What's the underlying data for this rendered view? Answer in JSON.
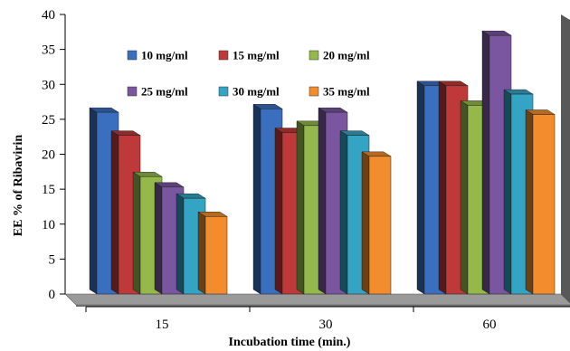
{
  "chart_data": {
    "type": "bar",
    "title": "",
    "xlabel": "Incubation time (min.)",
    "ylabel": "EE % of Ribavirin",
    "ylim": [
      0,
      40
    ],
    "yticks": [
      0,
      5,
      10,
      15,
      20,
      25,
      30,
      35,
      40
    ],
    "categories": [
      "15",
      "30",
      "60"
    ],
    "series": [
      {
        "name": "10 mg/ml",
        "color": "#3a6fc0",
        "values": [
          26,
          26.5,
          29.8
        ]
      },
      {
        "name": "15 mg/ml",
        "color": "#c0393a",
        "values": [
          22.7,
          23.1,
          29.8
        ]
      },
      {
        "name": "20 mg/ml",
        "color": "#94b84a",
        "values": [
          16.8,
          24.1,
          27.0
        ]
      },
      {
        "name": "25 mg/ml",
        "color": "#7a56a0",
        "values": [
          15.3,
          26.0,
          37.0
        ]
      },
      {
        "name": "30 mg/ml",
        "color": "#34a4c4",
        "values": [
          13.7,
          22.7,
          28.6
        ]
      },
      {
        "name": "35 mg/ml",
        "color": "#f38c2c",
        "values": [
          11.1,
          19.7,
          25.7
        ]
      }
    ],
    "grid": false,
    "legend_position": "top-right"
  }
}
